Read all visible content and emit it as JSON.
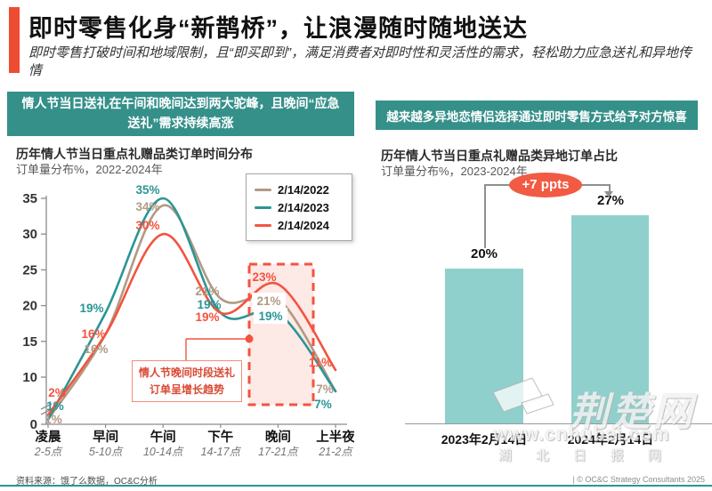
{
  "header": {
    "title": "即时零售化身“新鹊桥”，让浪漫随时随地送达",
    "subtitle": "即时零售打破时间和地域限制，且“即买即到”，满足消费者对即时性和灵活性的需求，轻松助力应急送礼和异地传情"
  },
  "colors": {
    "accent": "#ee4b33",
    "banner": "#35908a",
    "badge": "#f15b43",
    "bar": "#8fd0cc",
    "bottom_rule": "#2b9596"
  },
  "left_panel": {
    "banner": "情人节当日送礼在午间和晚间达到两大驼峰，且晚间“应急送礼”需求持续高涨",
    "chart_title": "历年情人节当日重点礼赠品类订单时间分布",
    "chart_subtitle": "订单量分布%，2022-2024年"
  },
  "right_panel": {
    "banner": "越来越多异地恋情侣选择通过即时零售方式给予对方惊喜",
    "chart_title": "历年情人节当日重点礼赠品类异地订单占比",
    "chart_subtitle": "订单量分布%，2023-2024年"
  },
  "chart_data": [
    {
      "type": "line",
      "title": "历年情人节当日重点礼赠品类订单时间分布",
      "ylabel": "订单量分布%",
      "categories": [
        "凌晨",
        "早间",
        "午间",
        "下午",
        "晚间",
        "上半夜"
      ],
      "category_times": [
        "2-5点",
        "5-10点",
        "10-14点",
        "14-17点",
        "17-21点",
        "21-2点"
      ],
      "series": [
        {
          "name": "2/14/2022",
          "color": "#b29a84",
          "values": [
            1,
            16,
            34,
            21,
            21,
            7
          ]
        },
        {
          "name": "2/14/2023",
          "color": "#2a9596",
          "values": [
            1,
            19,
            35,
            19,
            19,
            7
          ]
        },
        {
          "name": "2/14/2024",
          "color": "#f2543f",
          "values": [
            2,
            16,
            30,
            19,
            23,
            11
          ]
        }
      ],
      "y_ticks": [
        0,
        10,
        15,
        20,
        25,
        30,
        35
      ],
      "ylim": [
        0,
        35
      ],
      "axis_break": true,
      "grid": false,
      "legend_position": "top-right",
      "highlight_category": "晚间",
      "annotation_lines": [
        "情人节晚间时段送礼",
        "订单呈增长趋势"
      ]
    },
    {
      "type": "bar",
      "title": "历年情人节当日重点礼赠品类异地订单占比",
      "ylabel": "订单量分布%",
      "categories": [
        "2023年2月14日",
        "2024年2月14日"
      ],
      "values": [
        20,
        27
      ],
      "bar_color": "#8fd0cc",
      "delta_label": "+7 ppts",
      "grid": false
    }
  ],
  "footer": {
    "source": "资料来源：饿了么数据，OC&C分析",
    "copyright": "| © OC&C Strategy Consultants 2025"
  },
  "watermark": {
    "site_name": "荆楚网",
    "url": "www.cnhubei.com",
    "caption": "湖北日报网"
  }
}
